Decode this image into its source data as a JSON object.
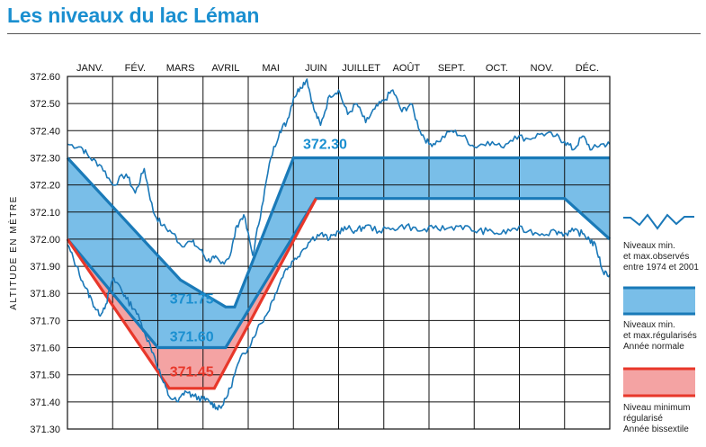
{
  "title": "Les niveaux du lac Léman",
  "colors": {
    "title": "#1a8fd0",
    "observed_line": "#1a78b8",
    "regulated_stroke": "#1a7ab8",
    "regulated_fill": "#79bee8",
    "leap_stroke": "#e8372a",
    "leap_fill": "#f4a3a3",
    "label_blue": "#1a8fd0",
    "label_red": "#e8372a"
  },
  "chart_data": {
    "type": "area",
    "title": "",
    "ylabel": "ALTITUDE EN MÈTRE",
    "xlabel": "",
    "months": [
      "JANV.",
      "FÉV.",
      "MARS",
      "AVRIL",
      "MAI",
      "JUIN",
      "JUILLET",
      "AOÛT",
      "SEPT.",
      "OCT.",
      "NOV.",
      "DÉC."
    ],
    "ylim": [
      371.3,
      372.6
    ],
    "yticks": [
      "372.60",
      "372.50",
      "372.40",
      "372.30",
      "372.20",
      "372.10",
      "372.00",
      "371.90",
      "371.80",
      "371.70",
      "371.60",
      "371.50",
      "371.40",
      "371.30"
    ],
    "grid": true,
    "series": [
      {
        "name": "Niveaux min. et max.observés entre 1974 et 2001",
        "kind": "observed_max",
        "x": [
          0,
          0.3,
          0.5,
          0.75,
          1.0,
          1.3,
          1.5,
          1.7,
          1.9,
          2.1,
          2.35,
          2.5,
          2.75,
          2.95,
          3.1,
          3.25,
          3.4,
          3.6,
          3.75,
          3.9,
          4.1,
          4.3,
          4.5,
          4.7,
          4.85,
          5.0,
          5.15,
          5.3,
          5.45,
          5.6,
          5.8,
          6.0,
          6.2,
          6.4,
          6.6,
          6.8,
          7.0,
          7.2,
          7.4,
          7.6,
          7.8,
          8.0,
          8.2,
          8.5,
          8.75,
          9.0,
          9.3,
          9.6,
          9.9,
          10.2,
          10.5,
          10.8,
          11.0,
          11.2,
          11.4,
          11.6,
          11.8,
          12.0
        ],
        "y": [
          372.35,
          372.34,
          372.3,
          372.27,
          372.2,
          372.24,
          372.17,
          372.26,
          372.1,
          372.05,
          372.02,
          371.98,
          371.99,
          371.96,
          371.92,
          371.93,
          371.91,
          371.94,
          372.05,
          372.09,
          371.94,
          372.12,
          372.3,
          372.4,
          372.43,
          372.52,
          372.56,
          372.59,
          372.48,
          372.42,
          372.53,
          372.55,
          372.46,
          372.5,
          372.43,
          372.48,
          372.51,
          372.55,
          372.47,
          372.5,
          372.4,
          372.35,
          372.36,
          372.4,
          372.38,
          372.34,
          372.36,
          372.34,
          372.38,
          372.37,
          372.39,
          372.38,
          372.36,
          372.33,
          372.38,
          372.33,
          372.35,
          372.35
        ]
      },
      {
        "name": "Niveaux min. et max.observés entre 1974 et 2001",
        "kind": "observed_min",
        "x": [
          0,
          0.2,
          0.4,
          0.55,
          0.7,
          0.85,
          1.0,
          1.15,
          1.3,
          1.5,
          1.7,
          1.9,
          2.1,
          2.25,
          2.45,
          2.6,
          2.8,
          3.0,
          3.15,
          3.3,
          3.45,
          3.6,
          3.8,
          4.0,
          4.2,
          4.4,
          4.6,
          4.8,
          5.0,
          5.2,
          5.4,
          5.6,
          5.8,
          6.0,
          6.2,
          6.4,
          6.6,
          6.9,
          7.2,
          7.5,
          7.8,
          8.1,
          8.4,
          8.7,
          9.0,
          9.3,
          9.6,
          9.9,
          10.2,
          10.5,
          10.8,
          11.0,
          11.2,
          11.4,
          11.55,
          11.7,
          11.85,
          12.0
        ],
        "y": [
          371.98,
          371.9,
          371.82,
          371.77,
          371.72,
          371.76,
          371.85,
          371.83,
          371.78,
          371.74,
          371.66,
          371.58,
          371.48,
          371.42,
          371.4,
          371.44,
          371.42,
          371.41,
          371.4,
          371.38,
          371.39,
          371.45,
          371.55,
          371.6,
          371.67,
          371.72,
          371.8,
          371.88,
          371.92,
          371.96,
          372.0,
          372.02,
          372.0,
          372.03,
          372.04,
          372.03,
          372.05,
          372.03,
          372.04,
          372.05,
          372.03,
          372.04,
          372.04,
          372.05,
          372.03,
          372.03,
          372.02,
          372.04,
          372.03,
          372.02,
          372.03,
          372.02,
          372.03,
          372.02,
          372.0,
          371.97,
          371.88,
          371.87
        ]
      },
      {
        "name": "Niveaux min. et max.régularisés Année normale",
        "kind": "regulated_max",
        "x": [
          0,
          2.5,
          3.5,
          3.7,
          5.0,
          12.0
        ],
        "y": [
          372.3,
          371.85,
          371.75,
          371.75,
          372.3,
          372.3
        ]
      },
      {
        "name": "Niveaux min. et max.régularisés Année normale",
        "kind": "regulated_min",
        "x": [
          0,
          2.0,
          3.0,
          3.5,
          5.5,
          11.0,
          12.0
        ],
        "y": [
          372.0,
          371.6,
          371.6,
          371.6,
          372.15,
          372.15,
          372.0
        ]
      },
      {
        "name": "Niveau minimum régularisé Année bissextile",
        "kind": "leap_min",
        "x": [
          0,
          2.25,
          3.25,
          5.5
        ],
        "y": [
          372.0,
          371.45,
          371.45,
          372.15
        ]
      }
    ],
    "annotations": [
      {
        "text": "372.30",
        "x": 5.7,
        "y": 372.35,
        "color": "#1a8fd0"
      },
      {
        "text": "371.75",
        "x": 2.75,
        "y": 371.78,
        "color": "#1a8fd0"
      },
      {
        "text": "371.60",
        "x": 2.75,
        "y": 371.64,
        "color": "#1a8fd0"
      },
      {
        "text": "371.45",
        "x": 2.75,
        "y": 371.51,
        "color": "#e8372a"
      }
    ]
  },
  "legend": [
    {
      "key": "observed",
      "text": "Niveaux min.\net max.observés\nentre 1974 et 2001"
    },
    {
      "key": "regulated",
      "text": "Niveaux min.\net max.régularisés\nAnnée normale"
    },
    {
      "key": "leap",
      "text": "Niveau minimum\nrégularisé\nAnnée bissextile"
    }
  ]
}
